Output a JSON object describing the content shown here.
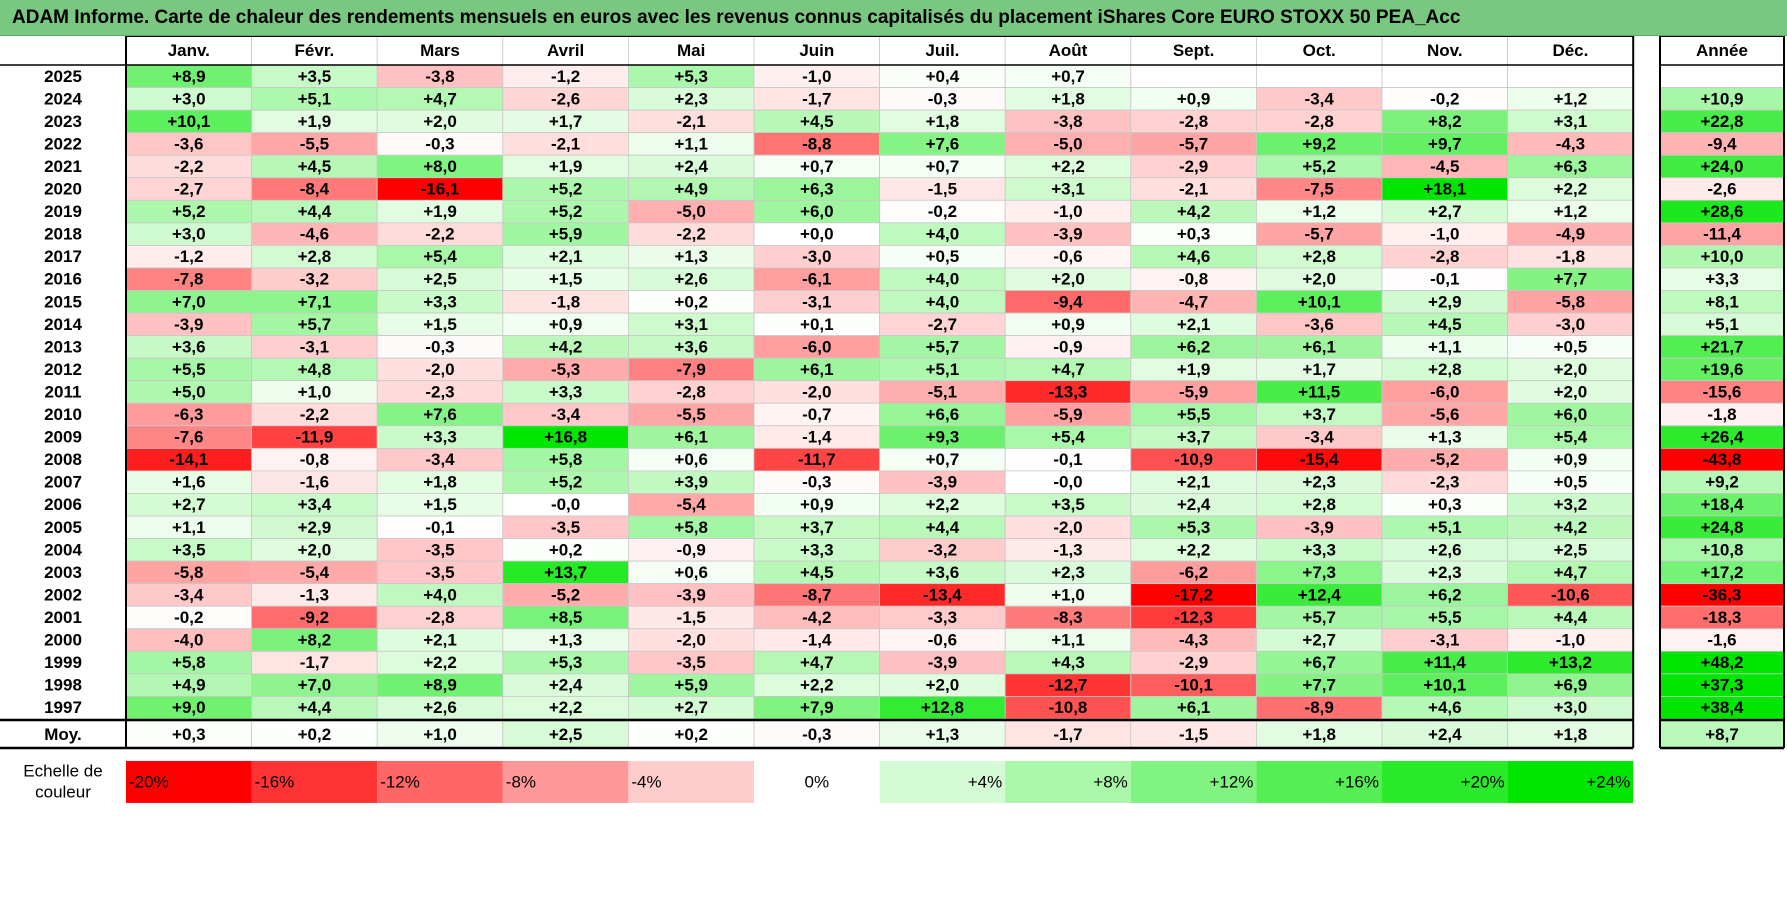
{
  "title": "ADAM Informe. Carte de chaleur des rendements mensuels en euros avec les revenus connus capitalisés du placement iShares Core EURO STOXX 50 PEA_Acc",
  "chart_data": {
    "type": "heatmap",
    "months": [
      "Janv.",
      "Févr.",
      "Mars",
      "Avril",
      "Mai",
      "Juin",
      "Juil.",
      "Août",
      "Sept.",
      "Oct.",
      "Nov.",
      "Déc."
    ],
    "year_header": "Année",
    "rows": [
      {
        "year": "2025",
        "values": [
          "+8,9",
          "+3,5",
          "-3,8",
          "-1,2",
          "+5,3",
          "-1,0",
          "+0,4",
          "+0,7",
          "",
          "",
          "",
          ""
        ],
        "annual": ""
      },
      {
        "year": "2024",
        "values": [
          "+3,0",
          "+5,1",
          "+4,7",
          "-2,6",
          "+2,3",
          "-1,7",
          "-0,3",
          "+1,8",
          "+0,9",
          "-3,4",
          "-0,2",
          "+1,2"
        ],
        "annual": "+10,9"
      },
      {
        "year": "2023",
        "values": [
          "+10,1",
          "+1,9",
          "+2,0",
          "+1,7",
          "-2,1",
          "+4,5",
          "+1,8",
          "-3,8",
          "-2,8",
          "-2,8",
          "+8,2",
          "+3,1"
        ],
        "annual": "+22,8"
      },
      {
        "year": "2022",
        "values": [
          "-3,6",
          "-5,5",
          "-0,3",
          "-2,1",
          "+1,1",
          "-8,8",
          "+7,6",
          "-5,0",
          "-5,7",
          "+9,2",
          "+9,7",
          "-4,3"
        ],
        "annual": "-9,4"
      },
      {
        "year": "2021",
        "values": [
          "-2,2",
          "+4,5",
          "+8,0",
          "+1,9",
          "+2,4",
          "+0,7",
          "+0,7",
          "+2,2",
          "-2,9",
          "+5,2",
          "-4,5",
          "+6,3"
        ],
        "annual": "+24,0"
      },
      {
        "year": "2020",
        "values": [
          "-2,7",
          "-8,4",
          "-16,1",
          "+5,2",
          "+4,9",
          "+6,3",
          "-1,5",
          "+3,1",
          "-2,1",
          "-7,5",
          "+18,1",
          "+2,2"
        ],
        "annual": "-2,6"
      },
      {
        "year": "2019",
        "values": [
          "+5,2",
          "+4,4",
          "+1,9",
          "+5,2",
          "-5,0",
          "+6,0",
          "-0,2",
          "-1,0",
          "+4,2",
          "+1,2",
          "+2,7",
          "+1,2"
        ],
        "annual": "+28,6"
      },
      {
        "year": "2018",
        "values": [
          "+3,0",
          "-4,6",
          "-2,2",
          "+5,9",
          "-2,2",
          "+0,0",
          "+4,0",
          "-3,9",
          "+0,3",
          "-5,7",
          "-1,0",
          "-4,9"
        ],
        "annual": "-11,4"
      },
      {
        "year": "2017",
        "values": [
          "-1,2",
          "+2,8",
          "+5,4",
          "+2,1",
          "+1,3",
          "-3,0",
          "+0,5",
          "-0,6",
          "+4,6",
          "+2,8",
          "-2,8",
          "-1,8"
        ],
        "annual": "+10,0"
      },
      {
        "year": "2016",
        "values": [
          "-7,8",
          "-3,2",
          "+2,5",
          "+1,5",
          "+2,6",
          "-6,1",
          "+4,0",
          "+2,0",
          "-0,8",
          "+2,0",
          "-0,1",
          "+7,7"
        ],
        "annual": "+3,3"
      },
      {
        "year": "2015",
        "values": [
          "+7,0",
          "+7,1",
          "+3,3",
          "-1,8",
          "+0,2",
          "-3,1",
          "+4,0",
          "-9,4",
          "-4,7",
          "+10,1",
          "+2,9",
          "-5,8"
        ],
        "annual": "+8,1"
      },
      {
        "year": "2014",
        "values": [
          "-3,9",
          "+5,7",
          "+1,5",
          "+0,9",
          "+3,1",
          "+0,1",
          "-2,7",
          "+0,9",
          "+2,1",
          "-3,6",
          "+4,5",
          "-3,0"
        ],
        "annual": "+5,1"
      },
      {
        "year": "2013",
        "values": [
          "+3,6",
          "-3,1",
          "-0,3",
          "+4,2",
          "+3,6",
          "-6,0",
          "+5,7",
          "-0,9",
          "+6,2",
          "+6,1",
          "+1,1",
          "+0,5"
        ],
        "annual": "+21,7"
      },
      {
        "year": "2012",
        "values": [
          "+5,5",
          "+4,8",
          "-2,0",
          "-5,3",
          "-7,9",
          "+6,1",
          "+5,1",
          "+4,7",
          "+1,9",
          "+1,7",
          "+2,8",
          "+2,0"
        ],
        "annual": "+19,6"
      },
      {
        "year": "2011",
        "values": [
          "+5,0",
          "+1,0",
          "-2,3",
          "+3,3",
          "-2,8",
          "-2,0",
          "-5,1",
          "-13,3",
          "-5,9",
          "+11,5",
          "-6,0",
          "+2,0"
        ],
        "annual": "-15,6"
      },
      {
        "year": "2010",
        "values": [
          "-6,3",
          "-2,2",
          "+7,6",
          "-3,4",
          "-5,5",
          "-0,7",
          "+6,6",
          "-5,9",
          "+5,5",
          "+3,7",
          "-5,6",
          "+6,0"
        ],
        "annual": "-1,8"
      },
      {
        "year": "2009",
        "values": [
          "-7,6",
          "-11,9",
          "+3,3",
          "+16,8",
          "+6,1",
          "-1,4",
          "+9,3",
          "+5,4",
          "+3,7",
          "-3,4",
          "+1,3",
          "+5,4"
        ],
        "annual": "+26,4"
      },
      {
        "year": "2008",
        "values": [
          "-14,1",
          "-0,8",
          "-3,4",
          "+5,8",
          "+0,6",
          "-11,7",
          "+0,7",
          "-0,1",
          "-10,9",
          "-15,4",
          "-5,2",
          "+0,9"
        ],
        "annual": "-43,8"
      },
      {
        "year": "2007",
        "values": [
          "+1,6",
          "-1,6",
          "+1,8",
          "+5,2",
          "+3,9",
          "-0,3",
          "-3,9",
          "-0,0",
          "+2,1",
          "+2,3",
          "-2,3",
          "+0,5"
        ],
        "annual": "+9,2"
      },
      {
        "year": "2006",
        "values": [
          "+2,7",
          "+3,4",
          "+1,5",
          "-0,0",
          "-5,4",
          "+0,9",
          "+2,2",
          "+3,5",
          "+2,4",
          "+2,8",
          "+0,3",
          "+3,2"
        ],
        "annual": "+18,4"
      },
      {
        "year": "2005",
        "values": [
          "+1,1",
          "+2,9",
          "-0,1",
          "-3,5",
          "+5,8",
          "+3,7",
          "+4,4",
          "-2,0",
          "+5,3",
          "-3,9",
          "+5,1",
          "+4,2"
        ],
        "annual": "+24,8"
      },
      {
        "year": "2004",
        "values": [
          "+3,5",
          "+2,0",
          "-3,5",
          "+0,2",
          "-0,9",
          "+3,3",
          "-3,2",
          "-1,3",
          "+2,2",
          "+3,3",
          "+2,6",
          "+2,5"
        ],
        "annual": "+10,8"
      },
      {
        "year": "2003",
        "values": [
          "-5,8",
          "-5,4",
          "-3,5",
          "+13,7",
          "+0,6",
          "+4,5",
          "+3,6",
          "+2,3",
          "-6,2",
          "+7,3",
          "+2,3",
          "+4,7"
        ],
        "annual": "+17,2"
      },
      {
        "year": "2002",
        "values": [
          "-3,4",
          "-1,3",
          "+4,0",
          "-5,2",
          "-3,9",
          "-8,7",
          "-13,4",
          "+1,0",
          "-17,2",
          "+12,4",
          "+6,2",
          "-10,6"
        ],
        "annual": "-36,3"
      },
      {
        "year": "2001",
        "values": [
          "-0,2",
          "-9,2",
          "-2,8",
          "+8,5",
          "-1,5",
          "-4,2",
          "-3,3",
          "-8,3",
          "-12,3",
          "+5,7",
          "+5,5",
          "+4,4"
        ],
        "annual": "-18,3"
      },
      {
        "year": "2000",
        "values": [
          "-4,0",
          "+8,2",
          "+2,1",
          "+1,3",
          "-2,0",
          "-1,4",
          "-0,6",
          "+1,1",
          "-4,3",
          "+2,7",
          "-3,1",
          "-1,0"
        ],
        "annual": "-1,6"
      },
      {
        "year": "1999",
        "values": [
          "+5,8",
          "-1,7",
          "+2,2",
          "+5,3",
          "-3,5",
          "+4,7",
          "-3,9",
          "+4,3",
          "-2,9",
          "+6,7",
          "+11,4",
          "+13,2"
        ],
        "annual": "+48,2"
      },
      {
        "year": "1998",
        "values": [
          "+4,9",
          "+7,0",
          "+8,9",
          "+2,4",
          "+5,9",
          "+2,2",
          "+2,0",
          "-12,7",
          "-10,1",
          "+7,7",
          "+10,1",
          "+6,9"
        ],
        "annual": "+37,3"
      },
      {
        "year": "1997",
        "values": [
          "+9,0",
          "+4,4",
          "+2,6",
          "+2,2",
          "+2,7",
          "+7,9",
          "+12,8",
          "-10,8",
          "+6,1",
          "-8,9",
          "+4,6",
          "+3,0"
        ],
        "annual": "+38,4"
      }
    ],
    "average": {
      "label": "Moy.",
      "values": [
        "+0,3",
        "+0,2",
        "+1,0",
        "+2,5",
        "+0,2",
        "-0,3",
        "+1,3",
        "-1,7",
        "-1,5",
        "+1,8",
        "+2,4",
        "+1,8"
      ],
      "annual": "+8,7"
    },
    "color_scale": {
      "label_line1": "Echelle de",
      "label_line2": "couleur",
      "stops": [
        {
          "label": "-20%",
          "value": -20
        },
        {
          "label": "-16%",
          "value": -16
        },
        {
          "label": "-12%",
          "value": -12
        },
        {
          "label": "-8%",
          "value": -8
        },
        {
          "label": "-4%",
          "value": -4
        },
        {
          "label": "0%",
          "value": 0
        },
        {
          "label": "+4%",
          "value": 4
        },
        {
          "label": "+8%",
          "value": 8
        },
        {
          "label": "+12%",
          "value": 12
        },
        {
          "label": "+16%",
          "value": 16
        },
        {
          "label": "+20%",
          "value": 20
        },
        {
          "label": "+24%",
          "value": 24
        }
      ],
      "negative_max_color": "#ff0000",
      "positive_max_color": "#00e600",
      "neutral_color": "#ffffff"
    }
  }
}
